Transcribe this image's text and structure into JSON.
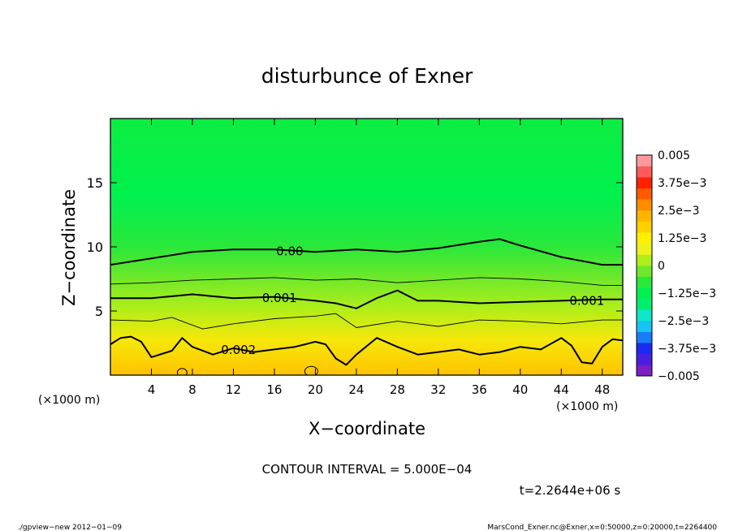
{
  "chart_data": {
    "type": "heatmap",
    "title": "disturbunce of Exner",
    "xlabel": "X−coordinate",
    "ylabel": "Z−coordinate",
    "x_unit": "(×1000 m)",
    "y_unit": "(×1000 m)",
    "xlim": [
      0,
      50
    ],
    "ylim": [
      0,
      20
    ],
    "x_ticks": [
      4,
      8,
      12,
      16,
      20,
      24,
      28,
      32,
      36,
      40,
      44,
      48
    ],
    "x_tick_labels": [
      "4",
      "8",
      "12",
      "16",
      "20",
      "24",
      "28",
      "32",
      "36",
      "40",
      "44",
      "48"
    ],
    "y_ticks": [
      5,
      10,
      15
    ],
    "y_tick_labels": [
      "5",
      "10",
      "15"
    ],
    "contour_interval_text": "CONTOUR INTERVAL = 5.000E−04",
    "time_text": "t=2.2644e+06 s",
    "colorbar": {
      "min": -0.005,
      "max": 0.005,
      "levels": [
        -0.005,
        -0.00375,
        -0.0025,
        -0.00125,
        0,
        0.00125,
        0.0025,
        0.00375,
        0.005
      ],
      "tick_labels": [
        "−0.005",
        "−3.75e−3",
        "−2.5e−3",
        "−1.25e−3",
        "0",
        "1.25e−3",
        "2.5e−3",
        "3.75e−3",
        "0.005"
      ],
      "colors": [
        "#7a1fc2",
        "#4a1ee0",
        "#1a2af0",
        "#1a7cf5",
        "#14c4f2",
        "#10e6c8",
        "#00ee70",
        "#00f050",
        "#2ae83a",
        "#6ee82a",
        "#b0ee1a",
        "#eef21a",
        "#fff000",
        "#ffd000",
        "#ffb400",
        "#ff8c00",
        "#ff5a00",
        "#ff2200",
        "#ff5a5a",
        "#ff9a9a"
      ]
    },
    "contours": [
      {
        "level": 0,
        "label": "0.00",
        "bold": true,
        "x": [
          0,
          4,
          8,
          12,
          16,
          20,
          24,
          28,
          32,
          36,
          38,
          40,
          44,
          48,
          50
        ],
        "z": [
          8.6,
          9.1,
          9.6,
          9.8,
          9.8,
          9.6,
          9.8,
          9.6,
          9.9,
          10.4,
          10.6,
          10.1,
          9.2,
          8.6,
          8.6
        ]
      },
      {
        "level": 0.0005,
        "label": "",
        "bold": false,
        "x": [
          0,
          4,
          8,
          12,
          16,
          20,
          24,
          28,
          32,
          36,
          40,
          44,
          48,
          50
        ],
        "z": [
          7.1,
          7.2,
          7.4,
          7.5,
          7.6,
          7.4,
          7.5,
          7.2,
          7.4,
          7.6,
          7.5,
          7.3,
          7.0,
          7.0
        ]
      },
      {
        "level": 0.001,
        "label": "0.001",
        "bold": true,
        "x": [
          0,
          4,
          8,
          12,
          16,
          20,
          22,
          24,
          25,
          26,
          28,
          30,
          32,
          36,
          40,
          44,
          48,
          50
        ],
        "z": [
          6.0,
          6.0,
          6.3,
          6.0,
          6.1,
          5.8,
          5.6,
          5.2,
          5.6,
          6.0,
          6.6,
          5.8,
          5.8,
          5.6,
          5.7,
          5.8,
          5.9,
          5.9
        ]
      },
      {
        "level": 0.0015,
        "label": "",
        "bold": false,
        "x": [
          0,
          4,
          6,
          8,
          9,
          12,
          16,
          20,
          22,
          24,
          28,
          32,
          36,
          40,
          44,
          48,
          50
        ],
        "z": [
          4.3,
          4.2,
          4.5,
          3.9,
          3.6,
          4.0,
          4.4,
          4.6,
          4.8,
          3.7,
          4.2,
          3.8,
          4.3,
          4.2,
          4.0,
          4.3,
          4.3
        ]
      },
      {
        "level": 0.002,
        "label": "0.002",
        "bold": true,
        "x": [
          0,
          1,
          2,
          3,
          4,
          6,
          7,
          8,
          10,
          12,
          14,
          16,
          18,
          19,
          20,
          21,
          22,
          23,
          24,
          26,
          28,
          30,
          32,
          34,
          36,
          38,
          40,
          42,
          44,
          45,
          46,
          47,
          48,
          49,
          50
        ],
        "z": [
          2.4,
          2.9,
          3.0,
          2.6,
          1.4,
          1.9,
          2.9,
          2.2,
          1.6,
          2.1,
          1.8,
          2.0,
          2.2,
          2.4,
          2.6,
          2.4,
          1.3,
          0.8,
          1.6,
          2.9,
          2.2,
          1.6,
          1.8,
          2.0,
          1.6,
          1.8,
          2.2,
          2.0,
          2.9,
          2.3,
          1.0,
          0.9,
          2.2,
          2.8,
          2.7
        ]
      }
    ]
  },
  "footer": {
    "left": "./gpview−new   2012−01−09",
    "right": "MarsCond_Exner.nc@Exner,x=0:50000,z=0:20000,t=2264400"
  }
}
